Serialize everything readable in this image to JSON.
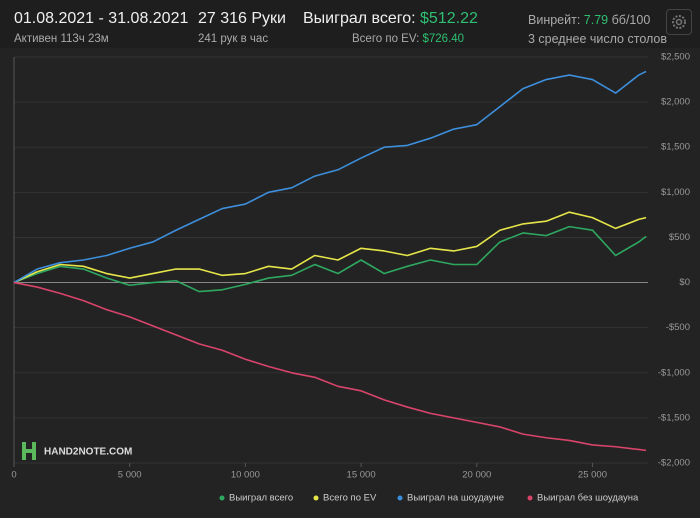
{
  "header": {
    "date_range": "01.08.2021 - 31.08.2021",
    "active": "Активен 113ч 23м",
    "hands": "27 316 Руки",
    "hands_per_hour": "241 рук в час",
    "won_label": "Выиграл всего:",
    "won_value": "$512.22",
    "ev_label": "Всего по EV:",
    "ev_value": "$726.40",
    "winrate_label": "Винрейт:",
    "winrate_value": "7.79",
    "winrate_unit": "бб/100",
    "tables": "3 среднее число столов"
  },
  "logo": "HAND2NOTE.COM",
  "chart_data": {
    "type": "line",
    "x": [
      0,
      1000,
      2000,
      3000,
      4000,
      5000,
      6000,
      7000,
      8000,
      9000,
      10000,
      11000,
      12000,
      13000,
      14000,
      15000,
      16000,
      17000,
      18000,
      19000,
      20000,
      21000,
      22000,
      23000,
      24000,
      25000,
      26000,
      27000,
      27316
    ],
    "series": [
      {
        "name": "Выиграл всего",
        "color": "#2ea860",
        "values": [
          0,
          100,
          180,
          150,
          50,
          -30,
          0,
          20,
          -100,
          -80,
          -20,
          50,
          80,
          200,
          100,
          250,
          100,
          180,
          250,
          200,
          200,
          450,
          550,
          520,
          620,
          580,
          300,
          450,
          512
        ]
      },
      {
        "name": "Всего по EV",
        "color": "#e6e64a",
        "values": [
          0,
          120,
          200,
          180,
          100,
          50,
          100,
          150,
          150,
          80,
          100,
          180,
          150,
          300,
          250,
          380,
          350,
          300,
          380,
          350,
          400,
          580,
          650,
          680,
          780,
          720,
          600,
          700,
          720
        ]
      },
      {
        "name": "Выиграл на шоудауне",
        "color": "#3d8fdc",
        "values": [
          0,
          150,
          220,
          250,
          300,
          380,
          450,
          580,
          700,
          820,
          870,
          1000,
          1050,
          1180,
          1250,
          1380,
          1500,
          1520,
          1600,
          1700,
          1750,
          1950,
          2150,
          2250,
          2300,
          2250,
          2100,
          2300,
          2340
        ]
      },
      {
        "name": "Выиграл без шоудауна",
        "color": "#d9446b",
        "values": [
          0,
          -50,
          -120,
          -200,
          -300,
          -380,
          -480,
          -580,
          -680,
          -750,
          -850,
          -930,
          -1000,
          -1050,
          -1150,
          -1200,
          -1300,
          -1380,
          -1450,
          -1500,
          -1550,
          -1600,
          -1680,
          -1720,
          -1750,
          -1800,
          -1820,
          -1850,
          -1860
        ]
      }
    ],
    "xlim": [
      0,
      27400
    ],
    "ylim": [
      -2000,
      2500
    ],
    "xticks": [
      0,
      {
        "value": 5000,
        "label": "5 000"
      },
      {
        "value": 10000,
        "label": "10 000"
      },
      {
        "value": 15000,
        "label": "15 000"
      },
      {
        "value": 20000,
        "label": "20 000"
      },
      {
        "value": 25000,
        "label": "25 000"
      }
    ],
    "yticks": [
      {
        "value": -2000,
        "label": "-$2,000"
      },
      {
        "value": -1500,
        "label": "-$1,500"
      },
      {
        "value": -1000,
        "label": "-$1,000"
      },
      {
        "value": -500,
        "label": "-$500"
      },
      {
        "value": 0,
        "label": "$0"
      },
      {
        "value": 500,
        "label": "$500"
      },
      {
        "value": 1000,
        "label": "$1,000"
      },
      {
        "value": 1500,
        "label": "$1,500"
      },
      {
        "value": 2000,
        "label": "$2,000"
      },
      {
        "value": 2500,
        "label": "$2,500"
      }
    ],
    "grid": true
  }
}
